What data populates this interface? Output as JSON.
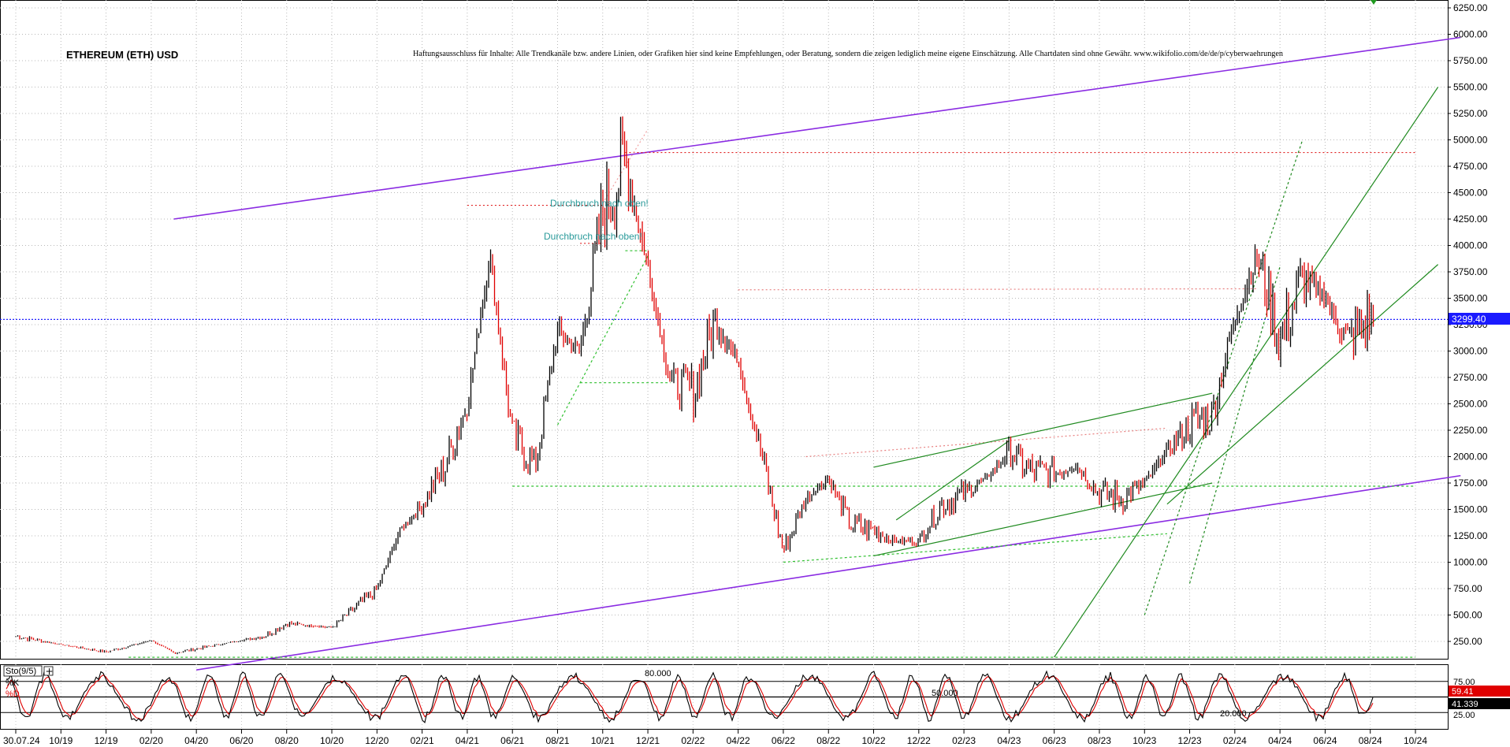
{
  "chart_data": {
    "type": "line",
    "title": "ETHEREUM (ETH) USD",
    "disclaimer": "Haftungsausschluss für Inhalte: Alle Trendkanäle bzw. andere Linien, oder Grafiken hier sind keine Empfehlungen, oder Beratung, sondern die zeigen lediglich meine eigene Einschätzung. Alle Chartdaten sind ohne Gewähr.  www.wikifolio.com/de/de/p/cyberwaehrungen",
    "y_ticks": [
      "6250.00",
      "6000.00",
      "5750.00",
      "5500.00",
      "5250.00",
      "5000.00",
      "4750.00",
      "4500.00",
      "4250.00",
      "4000.00",
      "3750.00",
      "3500.00",
      "3250.00",
      "3000.00",
      "2750.00",
      "2500.00",
      "2250.00",
      "2000.00",
      "1750.00",
      "1500.00",
      "1250.00",
      "1000.00",
      "750.00",
      "500.00",
      "250.00"
    ],
    "ylim": [
      0,
      6300
    ],
    "x_tick_labels": [
      "30.07.24",
      "10/19",
      "12/19",
      "02/20",
      "04/20",
      "06/20",
      "08/20",
      "10/20",
      "12/20",
      "02/21",
      "04/21",
      "06/21",
      "08/21",
      "10/21",
      "12/21",
      "02/22",
      "04/22",
      "06/22",
      "08/22",
      "10/22",
      "12/22",
      "02/23",
      "04/23",
      "06/23",
      "08/23",
      "10/23",
      "12/23",
      "02/24",
      "04/24",
      "06/24",
      "08/24",
      "10/24"
    ],
    "last_price": "3299.40",
    "price_series": {
      "name": "ETH/USD",
      "x": [
        "2019-08",
        "2019-10",
        "2019-12",
        "2020-02",
        "2020-03",
        "2020-05",
        "2020-07",
        "2020-08",
        "2020-10",
        "2020-11",
        "2020-12",
        "2021-01",
        "2021-02",
        "2021-03",
        "2021-04",
        "2021-05",
        "2021-06",
        "2021-07",
        "2021-08",
        "2021-09",
        "2021-10",
        "2021-11",
        "2021-12",
        "2022-01",
        "2022-02",
        "2022-03",
        "2022-04",
        "2022-05",
        "2022-06",
        "2022-07",
        "2022-08",
        "2022-09",
        "2022-10",
        "2022-11",
        "2022-12",
        "2023-01",
        "2023-02",
        "2023-03",
        "2023-04",
        "2023-05",
        "2023-06",
        "2023-07",
        "2023-08",
        "2023-09",
        "2023-10",
        "2023-11",
        "2023-12",
        "2024-01",
        "2024-02",
        "2024-03",
        "2024-04",
        "2024-05",
        "2024-06",
        "2024-07",
        "2024-08"
      ],
      "values": [
        300,
        220,
        150,
        260,
        140,
        220,
        300,
        420,
        380,
        560,
        740,
        1300,
        1550,
        1900,
        2500,
        3900,
        2200,
        1900,
        3200,
        3000,
        4300,
        4800,
        3800,
        2700,
        2600,
        3300,
        2900,
        2050,
        1100,
        1600,
        1800,
        1350,
        1300,
        1200,
        1200,
        1550,
        1650,
        1800,
        2050,
        1850,
        1850,
        1900,
        1650,
        1600,
        1750,
        2050,
        2300,
        2400,
        3300,
        3900,
        3100,
        3700,
        3500,
        3100,
        3299.4
      ]
    },
    "annotations": [
      "Durchbruch nach oben!",
      "Durchbruch nach oben!"
    ],
    "oscillator": {
      "label": "Sto(9/5)",
      "k_label": "%K",
      "d_label": "%D",
      "k_value": "59.41",
      "d_value": "41.339",
      "y_ticks": [
        "75.00",
        "25.00"
      ],
      "levels": [
        "80.000",
        "50.000",
        "20.000"
      ],
      "ylim": [
        0,
        100
      ]
    },
    "colors": {
      "price_up": "#000000",
      "price_down": "#e00000",
      "channel": "#8a2be2",
      "trend": "#1f8a1f",
      "resistance": "#e02020",
      "support": "#30c030",
      "price_line": "#2020ff",
      "pk": "#000000",
      "pd": "#e00000"
    }
  }
}
